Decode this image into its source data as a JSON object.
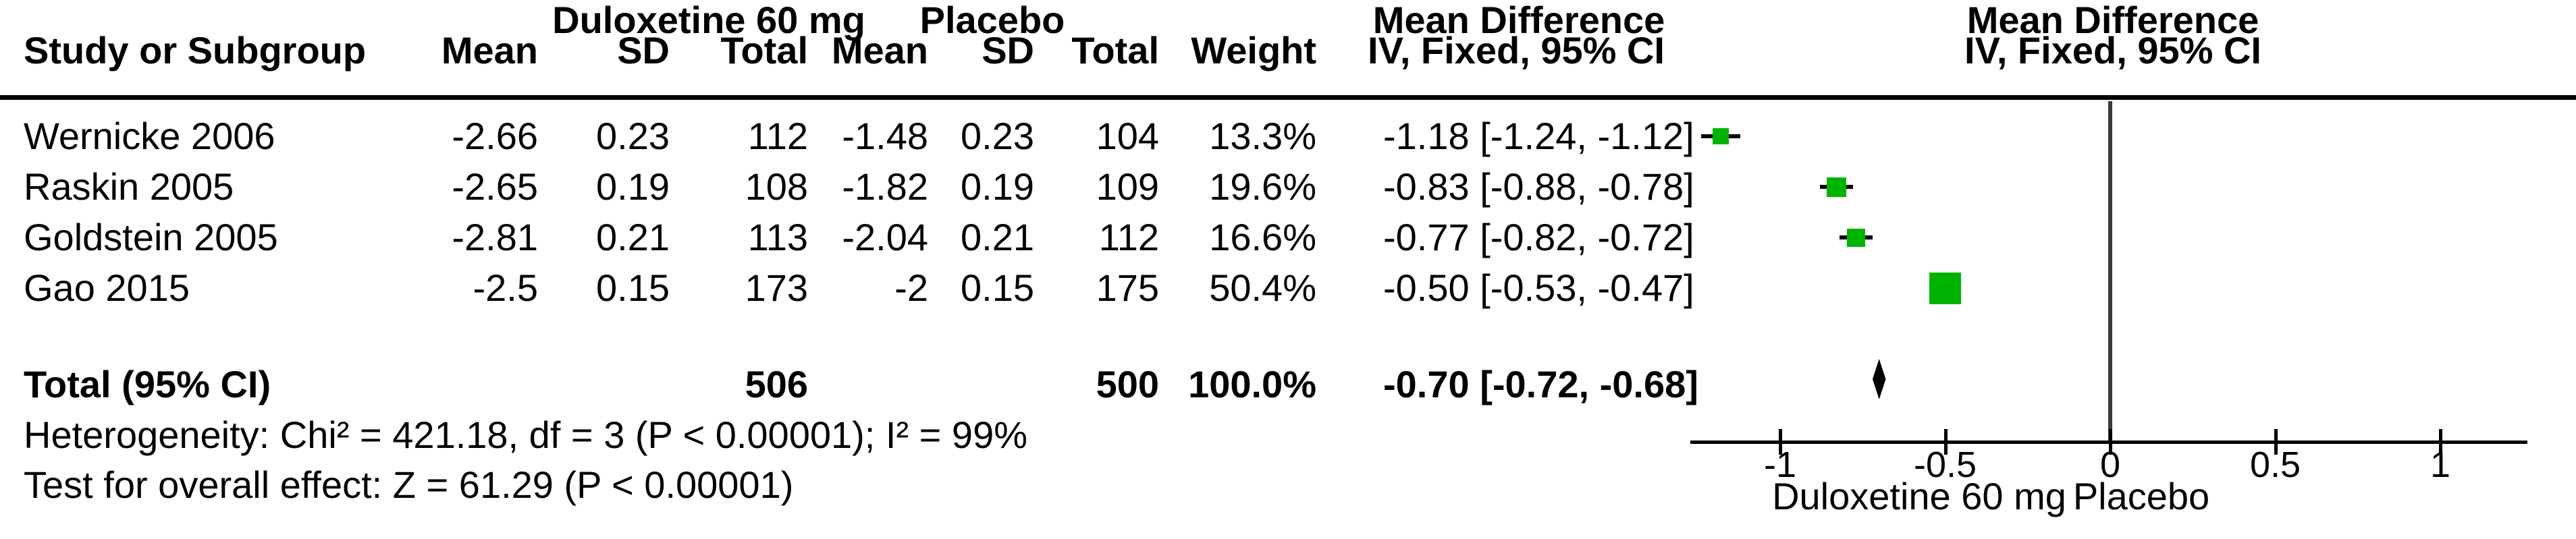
{
  "table": {
    "group1_header": "Duloxetine 60 mg",
    "group2_header": "Placebo",
    "columns": {
      "study": "Study or Subgroup",
      "mean": "Mean",
      "sd": "SD",
      "total": "Total",
      "weight": "Weight",
      "md_line1": "Mean Difference",
      "md_line2": "IV, Fixed, 95% CI"
    },
    "plot_header": {
      "line1": "Mean Difference",
      "line2": "IV, Fixed, 95% CI"
    },
    "rows": [
      {
        "study": "Wernicke 2006",
        "mean": "-2.66",
        "sd": "0.23",
        "total": "112",
        "p_mean": "-1.48",
        "p_sd": "0.23",
        "p_total": "104",
        "weight": "13.3%",
        "ci": "-1.18 [-1.24, -1.12]"
      },
      {
        "study": "Raskin 2005",
        "mean": "-2.65",
        "sd": "0.19",
        "total": "108",
        "p_mean": "-1.82",
        "p_sd": "0.19",
        "p_total": "109",
        "weight": "19.6%",
        "ci": "-0.83 [-0.88, -0.78]"
      },
      {
        "study": "Goldstein 2005",
        "mean": "-2.81",
        "sd": "0.21",
        "total": "113",
        "p_mean": "-2.04",
        "p_sd": "0.21",
        "p_total": "112",
        "weight": "16.6%",
        "ci": "-0.77 [-0.82, -0.72]"
      },
      {
        "study": "Gao 2015",
        "mean": "-2.5",
        "sd": "0.15",
        "total": "173",
        "p_mean": "-2",
        "p_sd": "0.15",
        "p_total": "175",
        "weight": "50.4%",
        "ci": "-0.50 [-0.53, -0.47]"
      }
    ],
    "total_row": {
      "label": "Total (95% CI)",
      "total": "506",
      "p_total": "500",
      "weight": "100.0%",
      "ci": "-0.70 [-0.72, -0.68]"
    },
    "heterogeneity": "Heterogeneity: Chi² = 421.18, df = 3 (P < 0.00001); I² = 99%",
    "overall_effect": "Test for overall effect: Z = 61.29 (P < 0.00001)"
  },
  "chart_data": {
    "type": "scatter",
    "subtype": "forest-plot",
    "effect_measure": "Mean Difference, IV, Fixed, 95% CI",
    "studies": [
      {
        "name": "Wernicke 2006",
        "md": -1.18,
        "ci_low": -1.24,
        "ci_high": -1.12,
        "weight_pct": 13.3
      },
      {
        "name": "Raskin 2005",
        "md": -0.83,
        "ci_low": -0.88,
        "ci_high": -0.78,
        "weight_pct": 19.6
      },
      {
        "name": "Goldstein 2005",
        "md": -0.77,
        "ci_low": -0.82,
        "ci_high": -0.72,
        "weight_pct": 16.6
      },
      {
        "name": "Gao 2015",
        "md": -0.5,
        "ci_low": -0.53,
        "ci_high": -0.47,
        "weight_pct": 50.4
      }
    ],
    "total": {
      "label": "Total (95% CI)",
      "md": -0.7,
      "ci_low": -0.72,
      "ci_high": -0.68
    },
    "axis": {
      "min": -1.27,
      "max": 1.26,
      "ticks": [
        -1,
        -0.5,
        0,
        0.5,
        1
      ],
      "tick_labels": [
        "-1",
        "-0.5",
        "0",
        "0.5",
        "1"
      ]
    },
    "footer_labels": {
      "left": "Duloxetine 60 mg",
      "right": "Placebo"
    },
    "marker_color": "#00B300",
    "diamond_color": "#000000"
  }
}
